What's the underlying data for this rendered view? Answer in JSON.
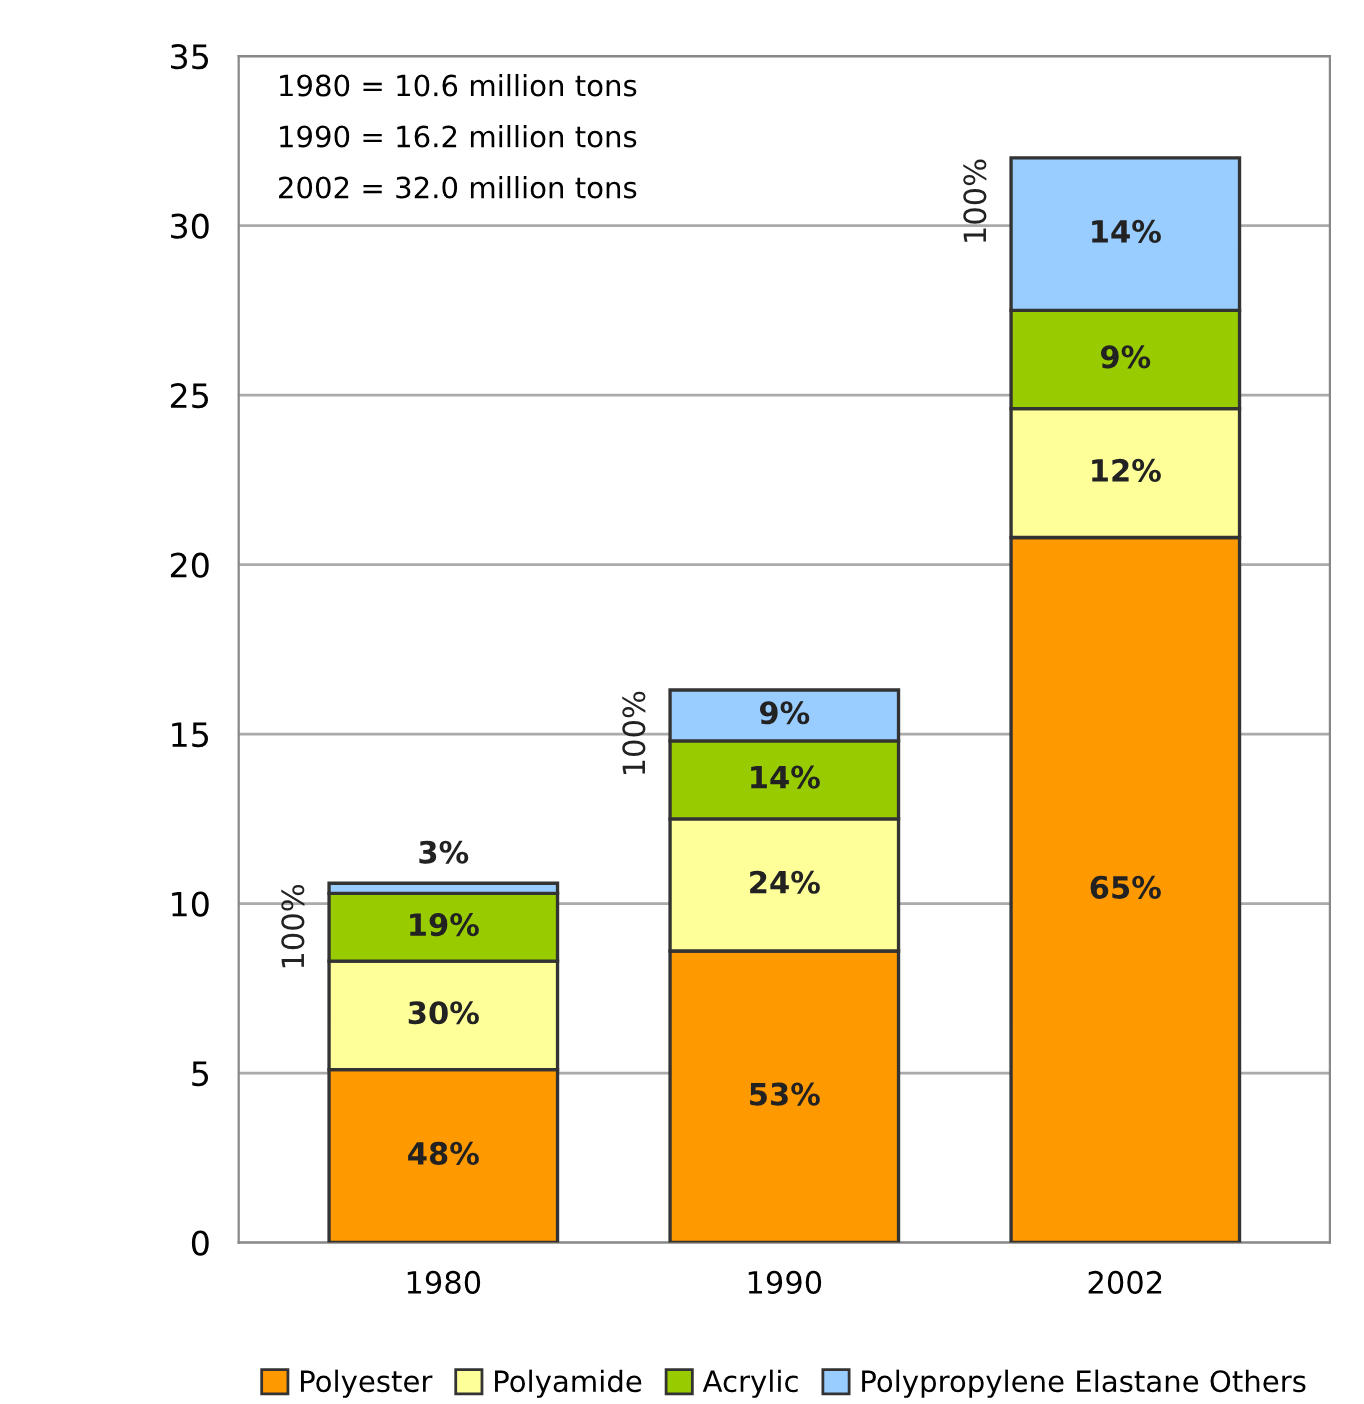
{
  "chart_data": {
    "type": "bar",
    "stacked": true,
    "categories": [
      "1980",
      "1990",
      "2002"
    ],
    "series": [
      {
        "name": "Polyester",
        "color": "#ff9900",
        "values": [
          5.1,
          8.6,
          20.8
        ]
      },
      {
        "name": "Polyamide",
        "color": "#ffff99",
        "values": [
          3.2,
          3.9,
          3.8
        ]
      },
      {
        "name": "Acrylic",
        "color": "#99cc00",
        "values": [
          2.0,
          2.3,
          2.9
        ]
      },
      {
        "name": "Polypropylene Elastane Others",
        "color": "#99ccff",
        "values": [
          0.3,
          1.5,
          4.5
        ]
      }
    ],
    "annotations": [
      "1980 = 10.6 million tons",
      "1990 = 16.2 million tons",
      "2002 = 32.0 million tons",
      "100%",
      "100%",
      "100%",
      "48%",
      "30%",
      "19%",
      "3%",
      "53%",
      "24%",
      "14%",
      "9%",
      "65%",
      "12%",
      "9%",
      "14%"
    ],
    "ylim": [
      0,
      35
    ],
    "yticks": [
      0,
      5,
      10,
      15,
      20,
      25,
      30,
      35
    ],
    "grid": "y",
    "legend": "bottom"
  }
}
